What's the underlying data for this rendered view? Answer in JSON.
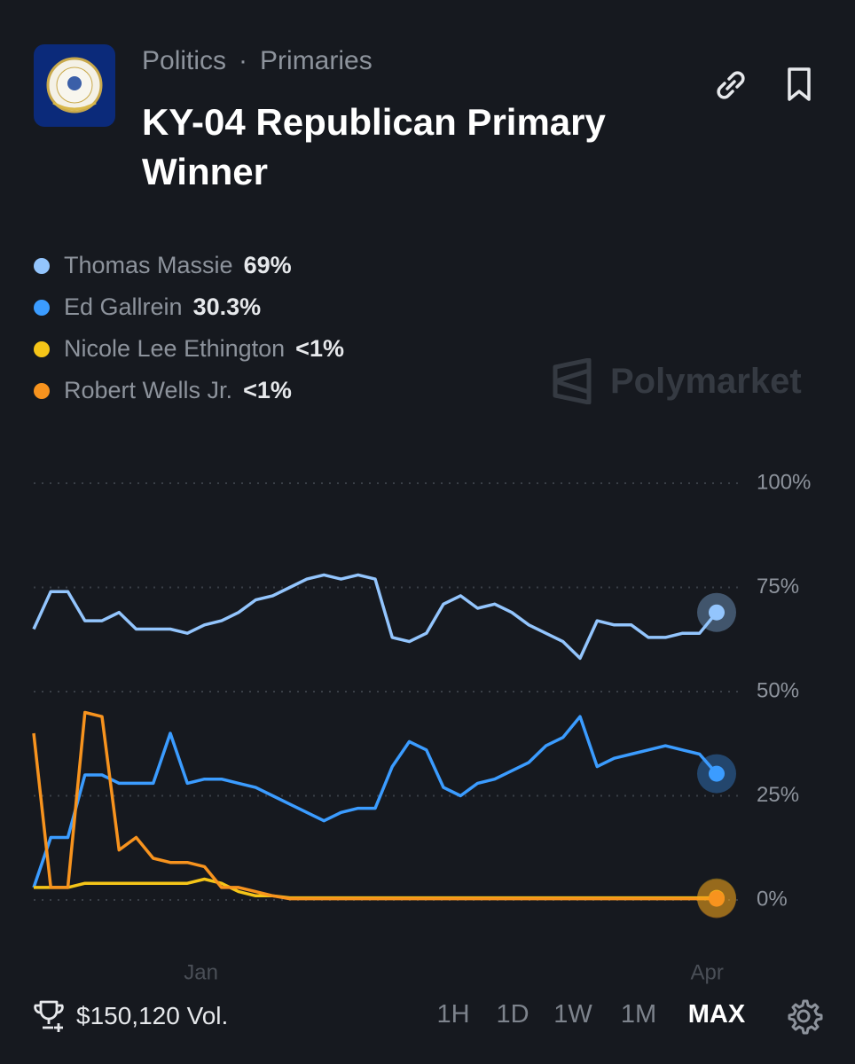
{
  "header": {
    "category": "Politics",
    "subcategory": "Primaries",
    "title": "KY-04 Republican Primary Winner"
  },
  "watermark": "Polymarket",
  "chart_data": {
    "type": "line",
    "x": [
      0,
      2.5,
      5,
      7.5,
      10,
      12.5,
      15,
      17.5,
      20,
      22.5,
      25,
      27.5,
      30,
      32.5,
      35,
      37.5,
      40,
      42.5,
      45,
      47.5,
      50,
      52.5,
      55,
      57.5,
      60,
      62.5,
      65,
      67.5,
      70,
      72.5,
      75,
      77.5,
      80,
      82.5,
      85,
      87.5,
      90,
      92.5,
      95,
      97.5,
      100
    ],
    "xlim": [
      0,
      100
    ],
    "xticks": [
      {
        "value": 24.5,
        "label": "Jan"
      },
      {
        "value": 98.6,
        "label": "Apr"
      }
    ],
    "ylim": [
      0,
      100
    ],
    "yticks": [
      {
        "value": 0,
        "label": "0%"
      },
      {
        "value": 25,
        "label": "25%"
      },
      {
        "value": 50,
        "label": "50%"
      },
      {
        "value": 75,
        "label": "75%"
      },
      {
        "value": 100,
        "label": "100%"
      }
    ],
    "grid": true,
    "series": [
      {
        "name": "Thomas Massie",
        "color": "#93c5fd",
        "current_label": "69%",
        "values": [
          65,
          74,
          74,
          67,
          67,
          69,
          65,
          65,
          65,
          64,
          66,
          67,
          69,
          72,
          73,
          75,
          77,
          78,
          77,
          78,
          77,
          63,
          62,
          64,
          71,
          73,
          70,
          71,
          69,
          66,
          64,
          62,
          58,
          67,
          66,
          66,
          63,
          63,
          64,
          64,
          69
        ]
      },
      {
        "name": "Ed Gallrein",
        "color": "#3b9cff",
        "current_label": "30.3%",
        "values": [
          3,
          15,
          15,
          30,
          30,
          28,
          28,
          28,
          40,
          28,
          29,
          29,
          28,
          27,
          25,
          23,
          21,
          19,
          21,
          22,
          22,
          32,
          38,
          36,
          27,
          25,
          28,
          29,
          31,
          33,
          37,
          39,
          44,
          32,
          34,
          35,
          36,
          37,
          36,
          35,
          30.3
        ]
      },
      {
        "name": "Nicole Lee Ethington",
        "color": "#f5c518",
        "current_label": "<1%",
        "values": [
          3,
          3,
          3,
          4,
          4,
          4,
          4,
          4,
          4,
          4,
          5,
          4,
          2,
          1,
          1,
          0.5,
          0.5,
          0.5,
          0.5,
          0.5,
          0.5,
          0.5,
          0.5,
          0.5,
          0.5,
          0.5,
          0.5,
          0.5,
          0.5,
          0.5,
          0.5,
          0.5,
          0.5,
          0.5,
          0.5,
          0.5,
          0.5,
          0.5,
          0.5,
          0.5,
          0.5
        ]
      },
      {
        "name": "Robert Wells Jr.",
        "color": "#f7931e",
        "current_label": "<1%",
        "values": [
          40,
          3,
          3,
          45,
          44,
          12,
          15,
          10,
          9,
          9,
          8,
          3,
          3,
          2,
          1,
          0.3,
          0.3,
          0.3,
          0.3,
          0.3,
          0.3,
          0.3,
          0.3,
          0.3,
          0.3,
          0.3,
          0.3,
          0.3,
          0.3,
          0.3,
          0.3,
          0.3,
          0.3,
          0.3,
          0.3,
          0.3,
          0.3,
          0.3,
          0.3,
          0.3,
          0.3
        ]
      }
    ]
  },
  "footer": {
    "volume": "$150,120 Vol.",
    "ranges": [
      "1H",
      "1D",
      "1W",
      "1M",
      "MAX"
    ],
    "selected": "MAX"
  }
}
